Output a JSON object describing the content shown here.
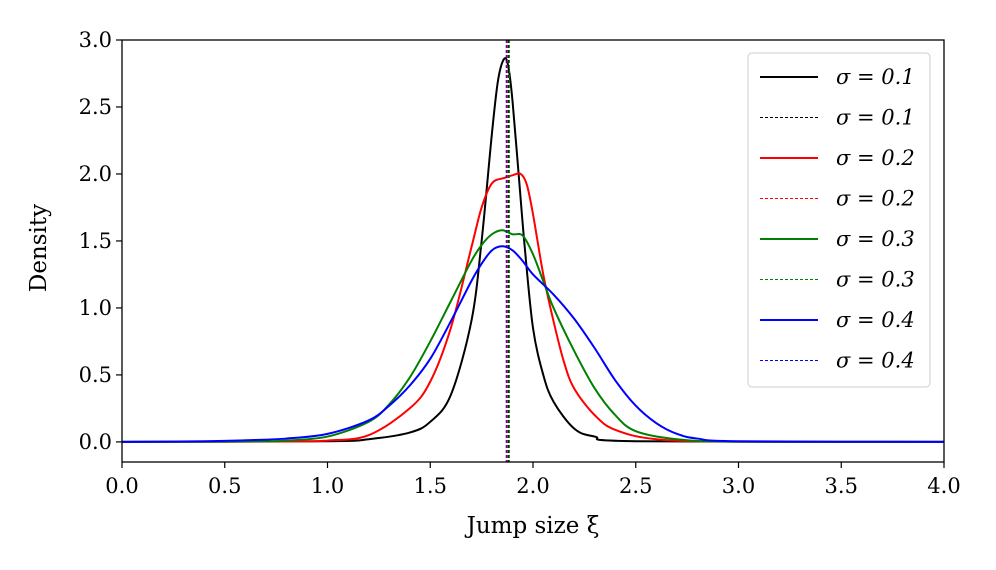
{
  "chart_data": {
    "type": "line",
    "title": "",
    "xlabel": "Jump size ξ",
    "ylabel": "Density",
    "xlim": [
      0.0,
      4.0
    ],
    "ylim": [
      -0.15,
      3.0
    ],
    "xticks": [
      0.0,
      0.5,
      1.0,
      1.5,
      2.0,
      2.5,
      3.0,
      3.5,
      4.0
    ],
    "xtick_labels": [
      "0.0",
      "0.5",
      "1.0",
      "1.5",
      "2.0",
      "2.5",
      "3.0",
      "3.5",
      "4.0"
    ],
    "yticks": [
      0.0,
      0.5,
      1.0,
      1.5,
      2.0,
      2.5,
      3.0
    ],
    "ytick_labels": [
      "0.0",
      "0.5",
      "1.0",
      "1.5",
      "2.0",
      "2.5",
      "3.0"
    ],
    "grid": false,
    "legend_position": "top-right",
    "series": [
      {
        "name": "σ = 0.1",
        "kind": "density",
        "color": "#000000",
        "style": "solid",
        "x": [
          0.0,
          1.0,
          1.2,
          1.4,
          1.5,
          1.6,
          1.7,
          1.75,
          1.8,
          1.83,
          1.86,
          1.88,
          1.9,
          1.93,
          1.96,
          2.0,
          2.05,
          2.1,
          2.2,
          2.3,
          2.5,
          4.0
        ],
        "y": [
          0.0,
          0.005,
          0.02,
          0.07,
          0.15,
          0.35,
          0.9,
          1.5,
          2.3,
          2.7,
          2.86,
          2.8,
          2.55,
          2.0,
          1.45,
          0.85,
          0.5,
          0.3,
          0.1,
          0.04,
          0.005,
          0.0
        ]
      },
      {
        "name": "σ = 0.1",
        "kind": "vline",
        "color": "#000000",
        "style": "dashed",
        "x_value": 1.88
      },
      {
        "name": "σ = 0.2",
        "kind": "density",
        "color": "#ff0000",
        "style": "solid",
        "x": [
          0.0,
          0.8,
          1.0,
          1.2,
          1.4,
          1.5,
          1.6,
          1.7,
          1.75,
          1.8,
          1.86,
          1.9,
          1.94,
          1.97,
          2.0,
          2.05,
          2.1,
          2.15,
          2.2,
          2.3,
          2.4,
          2.6,
          3.0,
          4.0
        ],
        "y": [
          0.0,
          0.003,
          0.01,
          0.05,
          0.25,
          0.45,
          0.85,
          1.45,
          1.75,
          1.93,
          1.97,
          1.99,
          2.0,
          1.92,
          1.7,
          1.25,
          0.9,
          0.6,
          0.4,
          0.2,
          0.09,
          0.02,
          0.002,
          0.0
        ]
      },
      {
        "name": "σ = 0.2",
        "kind": "vline",
        "color": "#ff0000",
        "style": "dashed",
        "x_value": 1.875
      },
      {
        "name": "σ = 0.3",
        "kind": "density",
        "color": "#008000",
        "style": "solid",
        "x": [
          0.0,
          0.6,
          0.8,
          1.0,
          1.2,
          1.3,
          1.4,
          1.5,
          1.6,
          1.7,
          1.75,
          1.8,
          1.85,
          1.9,
          1.95,
          2.0,
          2.05,
          2.1,
          2.2,
          2.3,
          2.4,
          2.5,
          2.7,
          3.0,
          4.0
        ],
        "y": [
          0.0,
          0.003,
          0.01,
          0.04,
          0.15,
          0.28,
          0.48,
          0.75,
          1.05,
          1.35,
          1.47,
          1.55,
          1.58,
          1.55,
          1.54,
          1.4,
          1.2,
          1.0,
          0.68,
          0.4,
          0.2,
          0.08,
          0.02,
          0.002,
          0.0
        ]
      },
      {
        "name": "σ = 0.3",
        "kind": "vline",
        "color": "#008000",
        "style": "dashed",
        "x_value": 1.885
      },
      {
        "name": "σ = 0.4",
        "kind": "density",
        "color": "#0000ff",
        "style": "solid",
        "x": [
          0.0,
          0.4,
          0.6,
          0.8,
          1.0,
          1.2,
          1.3,
          1.4,
          1.5,
          1.6,
          1.7,
          1.75,
          1.8,
          1.85,
          1.9,
          1.95,
          2.0,
          2.1,
          2.2,
          2.3,
          2.4,
          2.5,
          2.6,
          2.7,
          2.8,
          3.0,
          4.0
        ],
        "y": [
          0.0,
          0.005,
          0.012,
          0.025,
          0.06,
          0.16,
          0.27,
          0.42,
          0.62,
          0.9,
          1.2,
          1.33,
          1.43,
          1.46,
          1.43,
          1.35,
          1.25,
          1.1,
          0.92,
          0.7,
          0.46,
          0.27,
          0.14,
          0.06,
          0.025,
          0.005,
          0.0
        ]
      },
      {
        "name": "σ = 0.4",
        "kind": "vline",
        "color": "#0000ff",
        "style": "dashed",
        "x_value": 1.87
      }
    ]
  }
}
